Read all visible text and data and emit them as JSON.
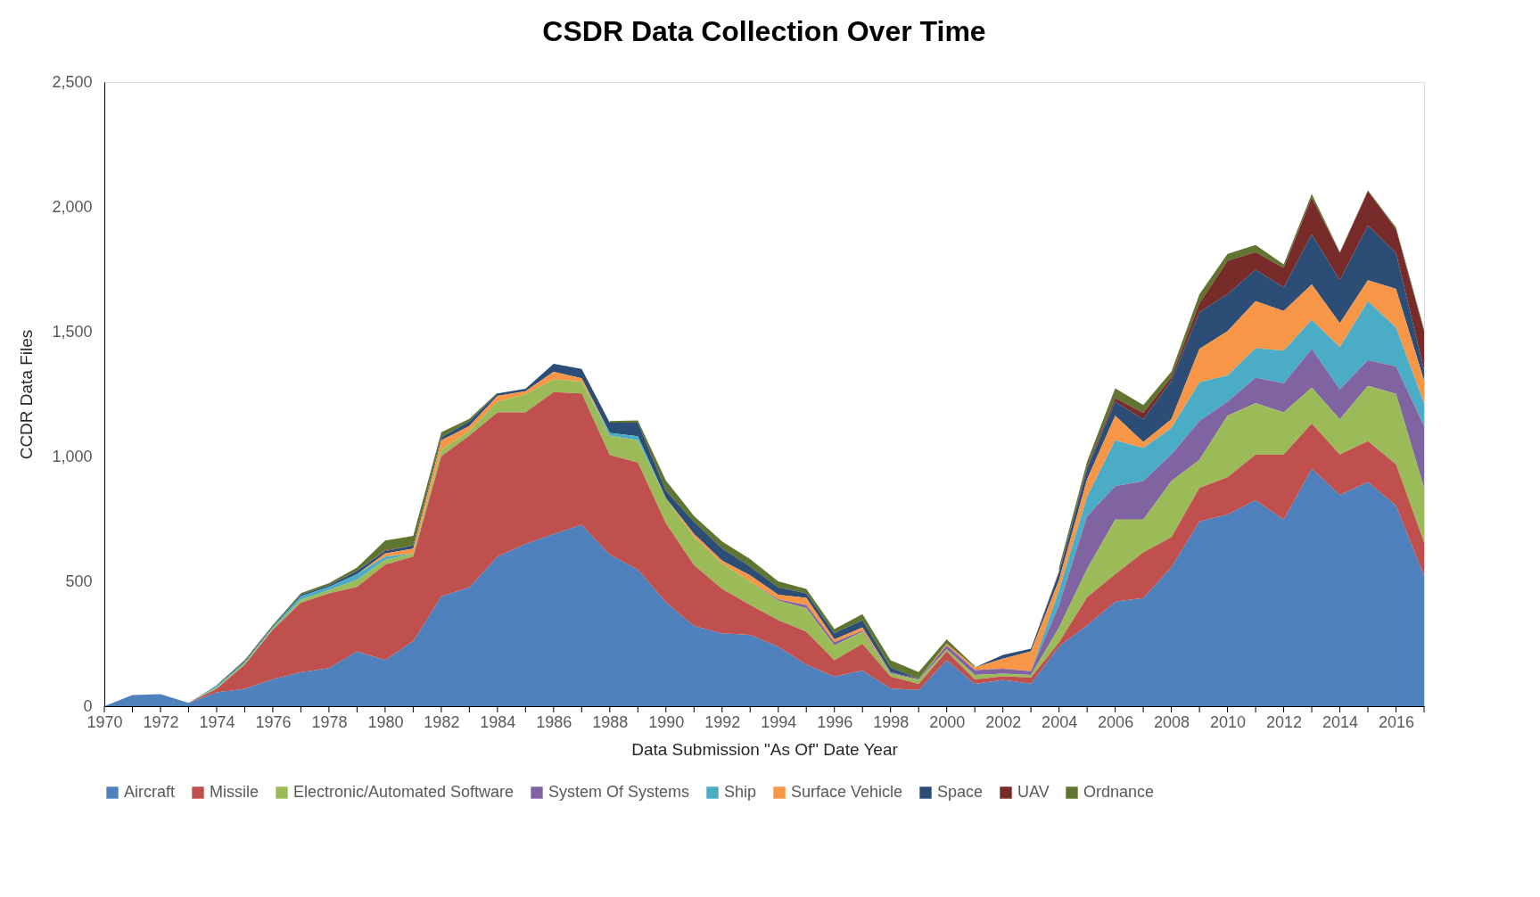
{
  "chart_data": {
    "type": "area",
    "stacked": true,
    "title": "CSDR Data Collection Over Time",
    "xlabel": "Data Submission \"As Of\" Date Year",
    "ylabel": "CCDR Data Files",
    "x": [
      1970,
      1971,
      1972,
      1973,
      1974,
      1975,
      1976,
      1977,
      1978,
      1979,
      1980,
      1981,
      1982,
      1983,
      1984,
      1985,
      1986,
      1987,
      1988,
      1989,
      1990,
      1991,
      1992,
      1993,
      1994,
      1995,
      1996,
      1997,
      1998,
      1999,
      2000,
      2001,
      2002,
      2003,
      2004,
      2005,
      2006,
      2007,
      2008,
      2009,
      2010,
      2011,
      2012,
      2013,
      2014,
      2015,
      2016,
      2017
    ],
    "xlim": [
      1970,
      2017
    ],
    "xticks": [
      1970,
      {
        "value": 1971,
        "label": null
      },
      1972,
      {
        "value": 1973,
        "label": null
      },
      1974,
      {
        "value": 1975,
        "label": null
      },
      1976,
      {
        "value": 1977,
        "label": null
      },
      1978,
      {
        "value": 1979,
        "label": null
      },
      1980,
      {
        "value": 1981,
        "label": null
      },
      1982,
      {
        "value": 1983,
        "label": null
      },
      1984,
      {
        "value": 1985,
        "label": null
      },
      1986,
      {
        "value": 1987,
        "label": null
      },
      1988,
      {
        "value": 1989,
        "label": null
      },
      1990,
      {
        "value": 1991,
        "label": null
      },
      1992,
      {
        "value": 1993,
        "label": null
      },
      1994,
      {
        "value": 1995,
        "label": null
      },
      1996,
      {
        "value": 1997,
        "label": null
      },
      1998,
      {
        "value": 1999,
        "label": null
      },
      2000,
      {
        "value": 2001,
        "label": null
      },
      2002,
      {
        "value": 2003,
        "label": null
      },
      2004,
      {
        "value": 2005,
        "label": null
      },
      2006,
      {
        "value": 2007,
        "label": null
      },
      2008,
      {
        "value": 2009,
        "label": null
      },
      2010,
      {
        "value": 2011,
        "label": null
      },
      2012,
      {
        "value": 2013,
        "label": null
      },
      2014,
      {
        "value": 2015,
        "label": null
      },
      2016,
      {
        "value": 2017,
        "label": null
      }
    ],
    "ylim": [
      0,
      2500
    ],
    "yticks": [
      0,
      500,
      {
        "value": 1000,
        "label": "1,000"
      },
      {
        "value": 1500,
        "label": "1,500"
      },
      {
        "value": 2000,
        "label": "2,000"
      },
      {
        "value": 2500,
        "label": "2,500"
      }
    ],
    "grid": false,
    "legend": "bottom",
    "series": [
      {
        "name": "Aircraft",
        "color": "#4f81bd",
        "values": [
          0,
          45,
          48,
          13,
          55,
          70,
          108,
          136,
          153,
          220,
          185,
          261,
          440,
          476,
          599,
          650,
          689,
          727,
          607,
          547,
          417,
          321,
          292,
          286,
          238,
          167,
          119,
          143,
          71,
          65,
          184,
          89,
          105,
          90,
          240,
          324,
          419,
          433,
          557,
          740,
          768,
          825,
          747,
          952,
          846,
          898,
          804,
          522
        ]
      },
      {
        "name": "Missile",
        "color": "#c0504d",
        "values": [
          0,
          0,
          0,
          0,
          15,
          96,
          198,
          278,
          299,
          258,
          382,
          338,
          561,
          608,
          578,
          527,
          569,
          526,
          399,
          429,
          315,
          244,
          178,
          119,
          107,
          131,
          65,
          107,
          48,
          24,
          36,
          18,
          15,
          25,
          15,
          113,
          110,
          183,
          120,
          134,
          149,
          183,
          261,
          180,
          162,
          164,
          165,
          134
        ]
      },
      {
        "name": "Electronic/Automated Software",
        "color": "#9bbb59",
        "values": [
          0,
          0,
          0,
          0,
          5,
          5,
          5,
          13,
          13,
          28,
          19,
          13,
          25,
          19,
          43,
          72,
          51,
          47,
          77,
          89,
          101,
          113,
          101,
          95,
          77,
          95,
          60,
          48,
          12,
          16,
          8,
          18,
          10,
          10,
          60,
          113,
          218,
          131,
          225,
          113,
          246,
          205,
          169,
          144,
          141,
          221,
          282,
          218
        ]
      },
      {
        "name": "System Of Systems",
        "color": "#8064a2",
        "values": [
          0,
          0,
          0,
          0,
          0,
          0,
          0,
          0,
          0,
          0,
          0,
          0,
          0,
          0,
          0,
          0,
          0,
          0,
          0,
          0,
          0,
          0,
          0,
          0,
          6,
          12,
          12,
          5,
          6,
          4,
          16,
          20,
          20,
          15,
          90,
          211,
          134,
          155,
          106,
          155,
          57,
          103,
          116,
          155,
          120,
          103,
          110,
          247
        ]
      },
      {
        "name": "Ship",
        "color": "#4bacc6",
        "values": [
          0,
          0,
          0,
          0,
          5,
          5,
          5,
          13,
          13,
          23,
          13,
          0,
          0,
          0,
          0,
          0,
          0,
          0,
          12,
          16,
          0,
          0,
          0,
          0,
          0,
          0,
          0,
          0,
          0,
          0,
          0,
          0,
          0,
          0,
          60,
          78,
          184,
          132,
          106,
          155,
          105,
          118,
          131,
          116,
          169,
          236,
          155,
          92
        ]
      },
      {
        "name": "Surface Vehicle",
        "color": "#f79646",
        "values": [
          0,
          0,
          0,
          0,
          0,
          0,
          0,
          0,
          0,
          0,
          13,
          19,
          39,
          19,
          23,
          13,
          30,
          13,
          0,
          0,
          0,
          12,
          12,
          24,
          18,
          29,
          12,
          12,
          0,
          0,
          6,
          10,
          40,
          80,
          40,
          70,
          98,
          24,
          35,
          134,
          177,
          188,
          159,
          142,
          96,
          84,
          155,
          91
        ]
      },
      {
        "name": "Space",
        "color": "#2c4d75",
        "values": [
          0,
          0,
          0,
          0,
          3,
          4,
          4,
          6,
          6,
          13,
          9,
          13,
          12,
          19,
          10,
          9,
          32,
          38,
          41,
          55,
          30,
          48,
          48,
          35,
          30,
          18,
          24,
          30,
          18,
          0,
          0,
          0,
          15,
          10,
          30,
          43,
          57,
          91,
          155,
          148,
          148,
          126,
          95,
          200,
          172,
          219,
          144,
          43
        ]
      },
      {
        "name": "UAV",
        "color": "#772c2a",
        "values": [
          0,
          0,
          0,
          0,
          0,
          0,
          0,
          0,
          0,
          0,
          4,
          0,
          0,
          0,
          0,
          0,
          0,
          0,
          0,
          0,
          0,
          0,
          0,
          0,
          0,
          0,
          0,
          0,
          0,
          0,
          0,
          0,
          0,
          0,
          5,
          7,
          14,
          26,
          14,
          35,
          134,
          71,
          77,
          148,
          109,
          138,
          96,
          155
        ]
      },
      {
        "name": "Ordnance",
        "color": "#5f7530",
        "values": [
          null,
          null,
          null,
          null,
          2,
          5,
          5,
          7,
          9,
          13,
          38,
          38,
          20,
          10,
          3,
          null,
          null,
          null,
          6,
          9,
          41,
          24,
          29,
          30,
          24,
          18,
          17,
          24,
          29,
          28,
          18,
          6,
          null,
          null,
          15,
          21,
          39,
          31,
          22,
          36,
          28,
          28,
          15,
          15,
          4,
          3,
          7,
          7
        ]
      }
    ]
  }
}
